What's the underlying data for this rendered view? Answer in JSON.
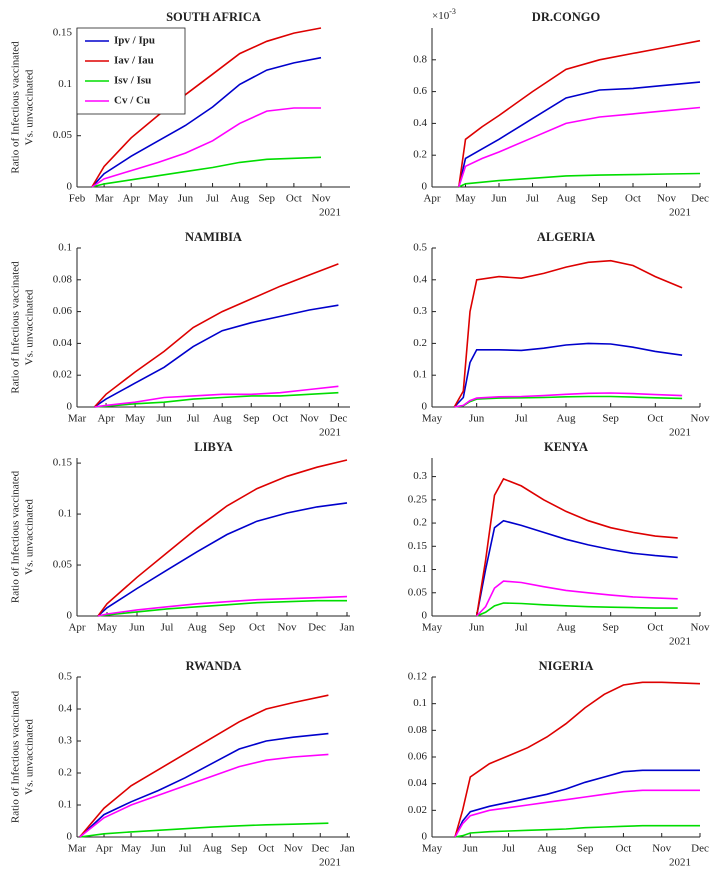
{
  "chart_data": [
    {
      "type": "line",
      "title": "SOUTH AFRICA",
      "ylabel": [
        "Ratio of Infectious vaccinated",
        "Vs. unvaccinated"
      ],
      "legend": "upper left",
      "x": [
        2.55,
        3,
        4,
        5,
        6,
        7,
        8,
        9,
        10,
        11
      ],
      "series": [
        {
          "name": "Ipv / Ipu",
          "color": "#0000cc",
          "values": [
            0,
            0.013,
            0.03,
            0.045,
            0.06,
            0.078,
            0.1,
            0.114,
            0.121,
            0.126
          ]
        },
        {
          "name": "Iav / Iau",
          "color": "#dd0000",
          "values": [
            0,
            0.02,
            0.048,
            0.07,
            0.09,
            0.11,
            0.13,
            0.142,
            0.15,
            0.155
          ]
        },
        {
          "name": "Isv / Isu",
          "color": "#00dd00",
          "values": [
            0,
            0.003,
            0.007,
            0.011,
            0.015,
            0.019,
            0.024,
            0.027,
            0.028,
            0.029
          ]
        },
        {
          "name": "Cv / Cu",
          "color": "#ff00ff",
          "values": [
            0,
            0.008,
            0.016,
            0.024,
            0.033,
            0.045,
            0.062,
            0.074,
            0.077,
            0.077
          ]
        }
      ],
      "xlim": [
        2,
        12.07
      ],
      "ylim": [
        0,
        0.155
      ],
      "xticks": [
        {
          "value": 2,
          "label": "Feb"
        },
        {
          "value": 3,
          "label": "Mar"
        },
        {
          "value": 4,
          "label": "Apr"
        },
        {
          "value": 5,
          "label": "May"
        },
        {
          "value": 6,
          "label": "Jun"
        },
        {
          "value": 7,
          "label": "Jul"
        },
        {
          "value": 8,
          "label": "Aug"
        },
        {
          "value": 9,
          "label": "Sep"
        },
        {
          "value": 10,
          "label": "Oct"
        },
        {
          "value": 11,
          "label": "Nov"
        }
      ],
      "yticks": [
        0,
        0.05,
        0.1,
        0.15
      ],
      "year_label": "2021"
    },
    {
      "type": "line",
      "title": "DR.CONGO",
      "y_scale": {
        "base": "×10",
        "exponent": "-3"
      },
      "x": [
        4.8,
        5,
        5.5,
        6,
        7,
        8,
        9,
        10,
        11,
        12
      ],
      "series": [
        {
          "color": "#0000cc",
          "values": [
            0,
            0.18,
            0.24,
            0.3,
            0.43,
            0.56,
            0.61,
            0.62,
            0.64,
            0.66
          ]
        },
        {
          "color": "#dd0000",
          "values": [
            0,
            0.3,
            0.38,
            0.45,
            0.6,
            0.74,
            0.8,
            0.84,
            0.88,
            0.92
          ]
        },
        {
          "color": "#00dd00",
          "values": [
            0,
            0.02,
            0.03,
            0.04,
            0.055,
            0.07,
            0.075,
            0.078,
            0.082,
            0.085
          ]
        },
        {
          "color": "#ff00ff",
          "values": [
            0,
            0.13,
            0.18,
            0.22,
            0.31,
            0.4,
            0.44,
            0.46,
            0.48,
            0.5
          ]
        }
      ],
      "xlim": [
        4,
        12
      ],
      "ylim": [
        0,
        1
      ],
      "xticks": [
        {
          "value": 4,
          "label": "Apr"
        },
        {
          "value": 5,
          "label": "May"
        },
        {
          "value": 6,
          "label": "Jun"
        },
        {
          "value": 7,
          "label": "Jul"
        },
        {
          "value": 8,
          "label": "Aug"
        },
        {
          "value": 9,
          "label": "Sep"
        },
        {
          "value": 10,
          "label": "Oct"
        },
        {
          "value": 11,
          "label": "Nov"
        },
        {
          "value": 12,
          "label": "Dec"
        }
      ],
      "yticks": [
        0,
        0.2,
        0.4,
        0.6,
        0.8
      ],
      "year_label": "2021"
    },
    {
      "type": "line",
      "title": "NAMIBIA",
      "ylabel": [
        "Ratio of Infectious vaccinated",
        "Vs. unvaccinated"
      ],
      "x": [
        3.6,
        4,
        5,
        6,
        7,
        8,
        9,
        10,
        11,
        12
      ],
      "series": [
        {
          "color": "#0000cc",
          "values": [
            0,
            0.005,
            0.015,
            0.025,
            0.038,
            0.048,
            0.053,
            0.057,
            0.061,
            0.064
          ]
        },
        {
          "color": "#dd0000",
          "values": [
            0,
            0.008,
            0.022,
            0.035,
            0.05,
            0.06,
            0.068,
            0.076,
            0.083,
            0.09
          ]
        },
        {
          "color": "#00dd00",
          "values": [
            0,
            0.0005,
            0.002,
            0.003,
            0.005,
            0.006,
            0.007,
            0.007,
            0.008,
            0.009
          ]
        },
        {
          "color": "#ff00ff",
          "values": [
            0,
            0.001,
            0.003,
            0.006,
            0.007,
            0.008,
            0.008,
            0.009,
            0.011,
            0.013
          ]
        }
      ],
      "xlim": [
        3,
        12.4
      ],
      "ylim": [
        0,
        0.1
      ],
      "xticks": [
        {
          "value": 3,
          "label": "Mar"
        },
        {
          "value": 4,
          "label": "Apr"
        },
        {
          "value": 5,
          "label": "May"
        },
        {
          "value": 6,
          "label": "Jun"
        },
        {
          "value": 7,
          "label": "Jul"
        },
        {
          "value": 8,
          "label": "Aug"
        },
        {
          "value": 9,
          "label": "Sep"
        },
        {
          "value": 10,
          "label": "Oct"
        },
        {
          "value": 11,
          "label": "Nov"
        },
        {
          "value": 12,
          "label": "Dec"
        }
      ],
      "yticks": [
        0,
        0.02,
        0.04,
        0.06,
        0.08,
        0.1
      ],
      "year_label": "2021"
    },
    {
      "type": "line",
      "title": "ALGERIA",
      "x": [
        5.5,
        5.7,
        5.85,
        6,
        6.5,
        7,
        7.5,
        8,
        8.5,
        9,
        9.5,
        10,
        10.6
      ],
      "series": [
        {
          "color": "#0000cc",
          "values": [
            0,
            0.03,
            0.14,
            0.18,
            0.18,
            0.178,
            0.185,
            0.195,
            0.2,
            0.198,
            0.188,
            0.175,
            0.163
          ]
        },
        {
          "color": "#dd0000",
          "values": [
            0,
            0.05,
            0.3,
            0.4,
            0.41,
            0.405,
            0.42,
            0.44,
            0.455,
            0.46,
            0.445,
            0.41,
            0.375
          ]
        },
        {
          "color": "#00dd00",
          "values": [
            0,
            0.004,
            0.017,
            0.025,
            0.028,
            0.029,
            0.03,
            0.032,
            0.033,
            0.033,
            0.031,
            0.029,
            0.027
          ]
        },
        {
          "color": "#ff00ff",
          "values": [
            0,
            0.005,
            0.02,
            0.028,
            0.032,
            0.033,
            0.036,
            0.04,
            0.043,
            0.044,
            0.042,
            0.039,
            0.036
          ]
        }
      ],
      "xlim": [
        5,
        11
      ],
      "ylim": [
        0,
        0.5
      ],
      "xticks": [
        {
          "value": 5,
          "label": "May"
        },
        {
          "value": 6,
          "label": "Jun"
        },
        {
          "value": 7,
          "label": "Jul"
        },
        {
          "value": 8,
          "label": "Aug"
        },
        {
          "value": 9,
          "label": "Sep"
        },
        {
          "value": 10,
          "label": "Oct"
        },
        {
          "value": 11,
          "label": "Nov"
        }
      ],
      "yticks": [
        0,
        0.1,
        0.2,
        0.3,
        0.4,
        0.5
      ],
      "year_label": "2021"
    },
    {
      "type": "line",
      "title": "LIBYA",
      "ylabel": [
        "Ratio of Infectious vaccinated",
        "Vs. unvaccinated"
      ],
      "x": [
        4.7,
        5,
        6,
        7,
        8,
        9,
        10,
        11,
        12,
        13
      ],
      "series": [
        {
          "color": "#0000cc",
          "values": [
            0,
            0.008,
            0.027,
            0.045,
            0.063,
            0.08,
            0.093,
            0.101,
            0.107,
            0.111
          ]
        },
        {
          "color": "#dd0000",
          "values": [
            0,
            0.012,
            0.038,
            0.062,
            0.086,
            0.108,
            0.125,
            0.137,
            0.146,
            0.153
          ]
        },
        {
          "color": "#00dd00",
          "values": [
            0,
            0.001,
            0.004,
            0.007,
            0.009,
            0.011,
            0.013,
            0.014,
            0.015,
            0.015
          ]
        },
        {
          "color": "#ff00ff",
          "values": [
            0,
            0.002,
            0.006,
            0.009,
            0.012,
            0.014,
            0.016,
            0.017,
            0.018,
            0.019
          ]
        }
      ],
      "xlim": [
        4,
        13.1
      ],
      "ylim": [
        0,
        0.155
      ],
      "xticks": [
        {
          "value": 4,
          "label": "Apr"
        },
        {
          "value": 5,
          "label": "May"
        },
        {
          "value": 6,
          "label": "Jun"
        },
        {
          "value": 7,
          "label": "Jul"
        },
        {
          "value": 8,
          "label": "Aug"
        },
        {
          "value": 9,
          "label": "Sep"
        },
        {
          "value": 10,
          "label": "Oct"
        },
        {
          "value": 11,
          "label": "Nov"
        },
        {
          "value": 12,
          "label": "Dec"
        },
        {
          "value": 13,
          "label": "Jan"
        }
      ],
      "yticks": [
        0,
        0.05,
        0.1,
        0.15
      ]
    },
    {
      "type": "line",
      "title": "KENYA",
      "x": [
        6,
        6.2,
        6.4,
        6.6,
        7,
        7.5,
        8,
        8.5,
        9,
        9.5,
        10,
        10.5
      ],
      "series": [
        {
          "color": "#0000cc",
          "values": [
            0,
            0.1,
            0.19,
            0.205,
            0.195,
            0.18,
            0.165,
            0.153,
            0.143,
            0.135,
            0.13,
            0.126
          ]
        },
        {
          "color": "#dd0000",
          "values": [
            0,
            0.12,
            0.26,
            0.295,
            0.28,
            0.25,
            0.225,
            0.205,
            0.19,
            0.18,
            0.172,
            0.168
          ]
        },
        {
          "color": "#00dd00",
          "values": [
            0,
            0.008,
            0.022,
            0.028,
            0.027,
            0.024,
            0.022,
            0.02,
            0.019,
            0.018,
            0.017,
            0.017
          ]
        },
        {
          "color": "#ff00ff",
          "values": [
            0,
            0.02,
            0.06,
            0.075,
            0.072,
            0.063,
            0.055,
            0.05,
            0.045,
            0.041,
            0.039,
            0.037
          ]
        }
      ],
      "xlim": [
        5,
        11
      ],
      "ylim": [
        0,
        0.34
      ],
      "xticks": [
        {
          "value": 5,
          "label": "May"
        },
        {
          "value": 6,
          "label": "Jun"
        },
        {
          "value": 7,
          "label": "Jul"
        },
        {
          "value": 8,
          "label": "Aug"
        },
        {
          "value": 9,
          "label": "Sep"
        },
        {
          "value": 10,
          "label": "Oct"
        },
        {
          "value": 11,
          "label": "Nov"
        }
      ],
      "yticks": [
        0,
        0.05,
        0.1,
        0.15,
        0.2,
        0.25,
        0.3
      ],
      "year_label": "2021"
    },
    {
      "type": "line",
      "title": "RWANDA",
      "ylabel": [
        "Ratio of Infectious vaccinated",
        "Vs. unvaccinated"
      ],
      "x": [
        3.1,
        4,
        5,
        6,
        7,
        8,
        9,
        10,
        11,
        12.3
      ],
      "series": [
        {
          "color": "#0000cc",
          "values": [
            0,
            0.07,
            0.11,
            0.145,
            0.185,
            0.23,
            0.275,
            0.3,
            0.312,
            0.323
          ]
        },
        {
          "color": "#dd0000",
          "values": [
            0,
            0.09,
            0.16,
            0.21,
            0.26,
            0.31,
            0.36,
            0.4,
            0.42,
            0.443
          ]
        },
        {
          "color": "#00dd00",
          "values": [
            0,
            0.01,
            0.016,
            0.021,
            0.026,
            0.031,
            0.035,
            0.038,
            0.04,
            0.043
          ]
        },
        {
          "color": "#ff00ff",
          "values": [
            0,
            0.06,
            0.1,
            0.13,
            0.16,
            0.19,
            0.22,
            0.24,
            0.25,
            0.258
          ]
        }
      ],
      "xlim": [
        3,
        13.1
      ],
      "ylim": [
        0,
        0.5
      ],
      "xticks": [
        {
          "value": 3,
          "label": "Mar"
        },
        {
          "value": 4,
          "label": "Apr"
        },
        {
          "value": 5,
          "label": "May"
        },
        {
          "value": 6,
          "label": "Jun"
        },
        {
          "value": 7,
          "label": "Jul"
        },
        {
          "value": 8,
          "label": "Aug"
        },
        {
          "value": 9,
          "label": "Sep"
        },
        {
          "value": 10,
          "label": "Oct"
        },
        {
          "value": 11,
          "label": "Nov"
        },
        {
          "value": 12,
          "label": "Dec"
        },
        {
          "value": 13,
          "label": "Jan"
        }
      ],
      "yticks": [
        0,
        0.1,
        0.2,
        0.3,
        0.4,
        0.5
      ],
      "year_label": "2021"
    },
    {
      "type": "line",
      "title": "NIGERIA",
      "x": [
        5.6,
        5.8,
        6,
        6.5,
        7,
        7.5,
        8,
        8.5,
        9,
        9.5,
        10,
        10.5,
        11,
        12
      ],
      "series": [
        {
          "color": "#0000cc",
          "values": [
            0,
            0.012,
            0.019,
            0.023,
            0.026,
            0.029,
            0.032,
            0.036,
            0.041,
            0.045,
            0.049,
            0.05,
            0.05,
            0.05
          ]
        },
        {
          "color": "#dd0000",
          "values": [
            0,
            0.02,
            0.045,
            0.055,
            0.061,
            0.067,
            0.075,
            0.085,
            0.097,
            0.107,
            0.114,
            0.116,
            0.116,
            0.115
          ]
        },
        {
          "color": "#00dd00",
          "values": [
            0,
            0.001,
            0.003,
            0.004,
            0.0045,
            0.005,
            0.0055,
            0.006,
            0.007,
            0.0075,
            0.008,
            0.0085,
            0.0085,
            0.0085
          ]
        },
        {
          "color": "#ff00ff",
          "values": [
            0,
            0.01,
            0.016,
            0.02,
            0.022,
            0.024,
            0.026,
            0.028,
            0.03,
            0.032,
            0.034,
            0.035,
            0.035,
            0.035
          ]
        }
      ],
      "xlim": [
        5,
        12
      ],
      "ylim": [
        0,
        0.12
      ],
      "xticks": [
        {
          "value": 5,
          "label": "May"
        },
        {
          "value": 6,
          "label": "Jun"
        },
        {
          "value": 7,
          "label": "Jul"
        },
        {
          "value": 8,
          "label": "Aug"
        },
        {
          "value": 9,
          "label": "Sep"
        },
        {
          "value": 10,
          "label": "Oct"
        },
        {
          "value": 11,
          "label": "Nov"
        },
        {
          "value": 12,
          "label": "Dec"
        }
      ],
      "yticks": [
        0,
        0.02,
        0.04,
        0.06,
        0.08,
        0.1,
        0.12
      ],
      "year_label": "2021"
    }
  ]
}
